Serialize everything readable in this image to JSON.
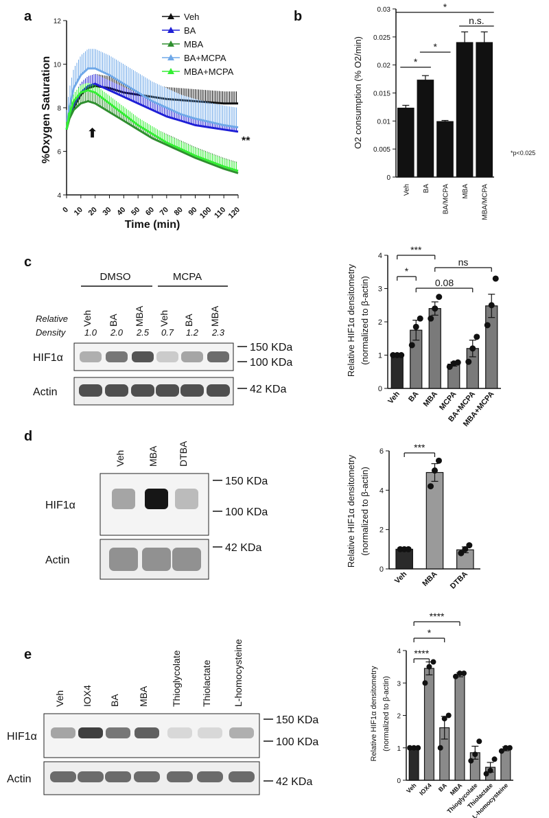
{
  "panels": {
    "a": "a",
    "b": "b",
    "c": "c",
    "d": "d",
    "e": "e"
  },
  "colors": {
    "black": "#111111",
    "blue": "#1f1fd6",
    "green": "#2f8f2f",
    "lightblue": "#6fa8e8",
    "lightgreen": "#33ee33",
    "bar": "#7a7a7a",
    "bar_dark": "#2a2a2a"
  },
  "panel_a": {
    "ylabel": "%Oxygen Saturation",
    "xlabel": "Time (min)",
    "significance": "**",
    "arrow": "⬆",
    "ytick_labels": [
      "4",
      "6",
      "8",
      "10",
      "12"
    ],
    "xtick_labels": [
      "0",
      "10",
      "20",
      "30",
      "40",
      "50",
      "60",
      "70",
      "80",
      "90",
      "100",
      "110",
      "120"
    ]
  },
  "panel_b": {
    "ylabel": "O2 consumption (% O2/min)",
    "footnote": "*p<0.025",
    "ytick_labels": [
      "0",
      "0.005",
      "0.01",
      "0.015",
      "0.02",
      "0.025",
      "0.03"
    ],
    "sig": [
      "*",
      "*",
      "*",
      "n.s."
    ]
  },
  "panel_c": {
    "groups": [
      "DMSO",
      "MCPA"
    ],
    "lanes": [
      "Veh",
      "BA",
      "MBA",
      "Veh",
      "BA",
      "MBA"
    ],
    "relative_label": [
      "Relative",
      "Density"
    ],
    "densities": [
      "1.0",
      "2.0",
      "2.5",
      "0.7",
      "1.2",
      "2.3"
    ],
    "rows": [
      "HIF1α",
      "Actin"
    ],
    "markers": [
      "150 KDa",
      "100 KDa",
      "42 KDa"
    ],
    "ylabel1": "Relative HIF1α densitometry",
    "ylabel2": "(normalized to β-actin)",
    "ytick_labels": [
      "0",
      "1",
      "2",
      "3",
      "4"
    ],
    "sig": [
      "***",
      "*",
      "ns",
      "0.08"
    ]
  },
  "panel_d": {
    "lanes": [
      "Veh",
      "MBA",
      "DTBA"
    ],
    "rows": [
      "HIF1α",
      "Actin"
    ],
    "markers": [
      "150 KDa",
      "100 KDa",
      "42 KDa"
    ],
    "ylabel1": "Relative HIF1α densitometry",
    "ylabel2": "(normalized to β-actin)",
    "ytick_labels": [
      "0",
      "2",
      "4",
      "6"
    ],
    "sig": [
      "***"
    ]
  },
  "panel_e": {
    "lanes": [
      "Veh",
      "IOX4",
      "BA",
      "MBA",
      "Thioglycolate",
      "Thiolactate",
      "L-homocysteine"
    ],
    "rows": [
      "HIF1α",
      "Actin"
    ],
    "markers": [
      "150 KDa",
      "100 KDa",
      "42 KDa"
    ],
    "ylabel1": "Relative HIF1α densitometry",
    "ylabel2": "(normalized to β-actin)",
    "ytick_labels": [
      "0",
      "1",
      "2",
      "3",
      "4"
    ],
    "sig": [
      "****",
      "*",
      "****"
    ]
  },
  "chart_data": [
    {
      "id": "a",
      "type": "line",
      "title": "",
      "xlabel": "Time (min)",
      "ylabel": "%Oxygen Saturation",
      "xlim": [
        0,
        120
      ],
      "ylim": [
        4,
        12
      ],
      "legend_position": "top-right",
      "x": [
        0,
        2,
        5,
        10,
        15,
        20,
        30,
        40,
        50,
        60,
        70,
        80,
        90,
        100,
        110,
        120
      ],
      "series": [
        {
          "name": "Veh",
          "color": "#111111",
          "values": [
            7.0,
            7.6,
            8.0,
            8.6,
            8.9,
            9.0,
            8.9,
            8.7,
            8.6,
            8.5,
            8.4,
            8.35,
            8.3,
            8.25,
            8.2,
            8.2
          ]
        },
        {
          "name": "BA",
          "color": "#1f1fd6",
          "values": [
            7.0,
            7.6,
            8.1,
            8.7,
            9.0,
            9.1,
            8.8,
            8.5,
            8.2,
            7.9,
            7.6,
            7.4,
            7.2,
            7.1,
            7.0,
            6.9
          ]
        },
        {
          "name": "MBA",
          "color": "#2f8f2f",
          "values": [
            7.0,
            7.5,
            7.9,
            8.2,
            8.3,
            8.2,
            7.8,
            7.4,
            7.0,
            6.6,
            6.3,
            6.0,
            5.7,
            5.45,
            5.2,
            5.0
          ]
        },
        {
          "name": "BA+MCPA",
          "color": "#6fa8e8",
          "values": [
            7.0,
            8.0,
            8.9,
            9.5,
            9.8,
            9.8,
            9.5,
            9.1,
            8.7,
            8.3,
            8.0,
            7.7,
            7.5,
            7.35,
            7.2,
            7.1
          ]
        },
        {
          "name": "MBA+MCPA",
          "color": "#33ee33",
          "values": [
            7.0,
            7.7,
            8.3,
            8.7,
            8.8,
            8.7,
            8.2,
            7.7,
            7.2,
            6.8,
            6.4,
            6.1,
            5.8,
            5.55,
            5.3,
            5.1
          ]
        }
      ]
    },
    {
      "id": "b",
      "type": "bar",
      "categories": [
        "Veh",
        "BA",
        "BA/MCPA",
        "MBA",
        "MBA/MCPA"
      ],
      "values": [
        0.0123,
        0.0173,
        0.0099,
        0.024,
        0.024
      ],
      "errors": [
        0.0005,
        0.0008,
        0.0002,
        0.0019,
        0.0019
      ],
      "ylabel": "O2 consumption (% O2/min)",
      "ylim": [
        0,
        0.03
      ]
    },
    {
      "id": "c",
      "type": "bar",
      "categories": [
        "Veh",
        "BA",
        "MBA",
        "MCPA",
        "BA+MCPA",
        "MBA+MCPA"
      ],
      "values": [
        1.0,
        1.75,
        2.4,
        0.73,
        1.2,
        2.48
      ],
      "errors": [
        0.0,
        0.3,
        0.2,
        0.06,
        0.25,
        0.35
      ],
      "points": [
        [
          1,
          1,
          1
        ],
        [
          1.3,
          1.85,
          2.1
        ],
        [
          2.1,
          2.4,
          2.75
        ],
        [
          0.65,
          0.75,
          0.78
        ],
        [
          0.8,
          1.2,
          1.55
        ],
        [
          1.9,
          2.5,
          3.3
        ]
      ],
      "ylabel": "Relative HIF1α densitometry (normalized to β-actin)",
      "ylim": [
        0,
        4
      ]
    },
    {
      "id": "d",
      "type": "bar",
      "categories": [
        "Veh",
        "MBA",
        "DTBA"
      ],
      "values": [
        1.0,
        4.9,
        0.97
      ],
      "errors": [
        0.0,
        0.45,
        0.15
      ],
      "points": [
        [
          1,
          1,
          1
        ],
        [
          4.2,
          5.0,
          5.5
        ],
        [
          0.8,
          1.0,
          1.2
        ]
      ],
      "ylabel": "Relative HIF1α densitometry (normalized to β-actin)",
      "ylim": [
        0,
        6
      ]
    },
    {
      "id": "e",
      "type": "bar",
      "categories": [
        "Veh",
        "IOX4",
        "BA",
        "MBA",
        "Thioglycolate",
        "Thiolactate",
        "L-homocysteine"
      ],
      "values": [
        1.0,
        3.45,
        1.62,
        3.25,
        0.85,
        0.4,
        0.97
      ],
      "errors": [
        0.0,
        0.2,
        0.35,
        0.06,
        0.2,
        0.15,
        0.06
      ],
      "points": [
        [
          1,
          1,
          1
        ],
        [
          3.0,
          3.5,
          3.65
        ],
        [
          1.0,
          1.9,
          2.0
        ],
        [
          3.2,
          3.3,
          3.3
        ],
        [
          0.6,
          0.8,
          1.2
        ],
        [
          0.2,
          0.3,
          0.65
        ],
        [
          0.9,
          1.0,
          1.0
        ]
      ],
      "ylabel": "Relative HIF1α densitometry (normalized to β-actin)",
      "ylim": [
        0,
        4
      ]
    }
  ]
}
